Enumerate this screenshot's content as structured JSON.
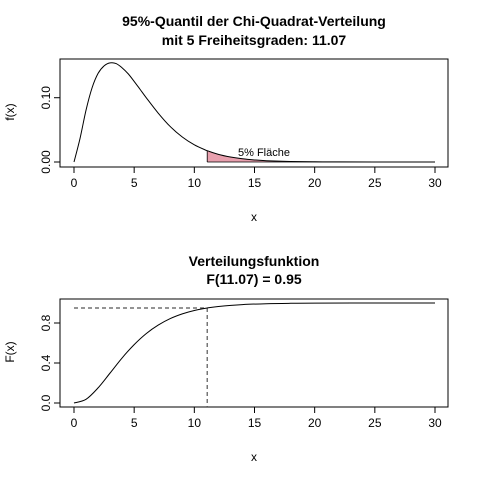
{
  "chart_data": [
    {
      "type": "line",
      "title": "95%-Quantil der Chi-Quadrat-Verteilung",
      "subtitle": "mit 5 Freiheitsgraden: 11.07",
      "xlabel": "x",
      "ylabel": "f(x)",
      "xlim": [
        0,
        30
      ],
      "ylim": [
        0,
        0.154
      ],
      "x_ticks": [
        "0",
        "5",
        "10",
        "15",
        "20",
        "25",
        "30"
      ],
      "y_ticks": [
        "0.00",
        "0.10"
      ],
      "grid": false,
      "quantile": 11.07,
      "area_color": "#E8A0AE",
      "annotation": "5% Fläche",
      "x": [
        0,
        0.5,
        1,
        1.5,
        2,
        2.5,
        3,
        3.5,
        4,
        4.5,
        5,
        5.5,
        6,
        7,
        8,
        9,
        10,
        11,
        11.07,
        12,
        13,
        14,
        15,
        16,
        18,
        20,
        22,
        25,
        30
      ],
      "y": [
        0,
        0.0366,
        0.0807,
        0.1153,
        0.1378,
        0.1496,
        0.1542,
        0.1531,
        0.1465,
        0.1373,
        0.1254,
        0.1128,
        0.1001,
        0.076,
        0.0551,
        0.0389,
        0.0267,
        0.018,
        0.0176,
        0.0119,
        0.0078,
        0.005,
        0.0032,
        0.002,
        0.0008,
        0.0003,
        0.0001,
        2e-05,
        0.0
      ]
    },
    {
      "type": "line",
      "title": "Verteilungsfunktion",
      "subtitle": "F(11.07) = 0.95",
      "xlabel": "x",
      "ylabel": "F(x)",
      "xlim": [
        0,
        30
      ],
      "ylim": [
        0,
        1
      ],
      "x_ticks": [
        "0",
        "5",
        "10",
        "15",
        "20",
        "25",
        "30"
      ],
      "y_ticks": [
        "0.0",
        "0.4",
        "0.8"
      ],
      "grid": false,
      "quantile": 11.07,
      "quantile_prob": 0.95,
      "x": [
        0,
        1,
        2,
        3,
        4,
        5,
        6,
        7,
        8,
        9,
        10,
        11.07,
        12,
        14,
        16,
        18,
        20,
        25,
        30
      ],
      "y": [
        0,
        0.037,
        0.151,
        0.3,
        0.451,
        0.584,
        0.694,
        0.779,
        0.844,
        0.891,
        0.925,
        0.95,
        0.965,
        0.984,
        0.993,
        0.997,
        0.9988,
        0.9999,
        1.0
      ]
    }
  ]
}
